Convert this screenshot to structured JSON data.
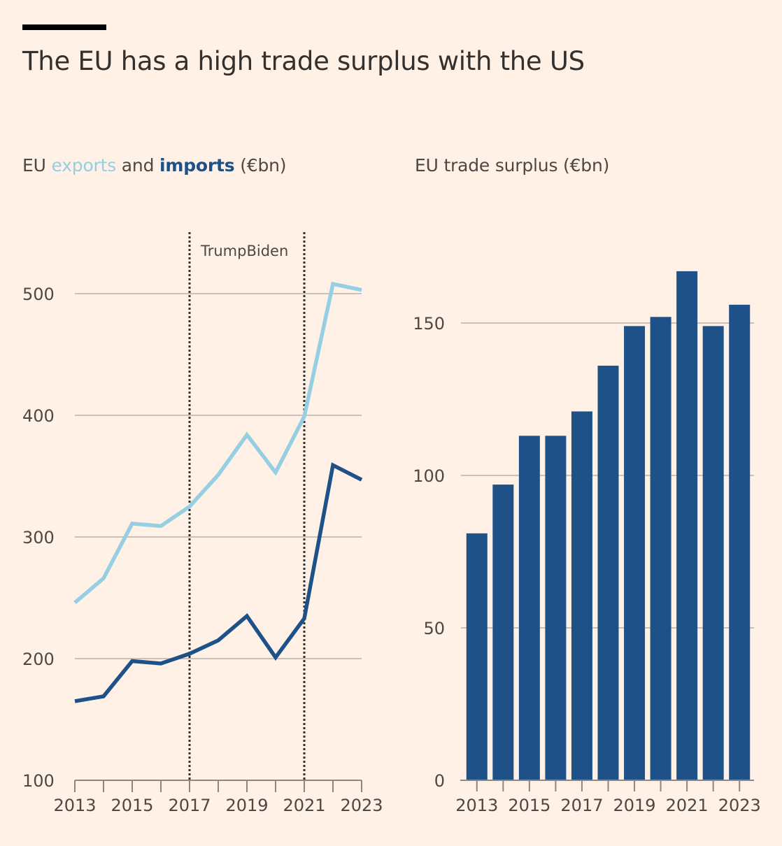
{
  "header": {
    "title": "The EU has a high trade surplus with the US"
  },
  "colors": {
    "background": "#FFF1E5",
    "exports": "#96CFE3",
    "imports": "#1F5189",
    "surplus": "#1F5189",
    "gridline": "#CCC1B7",
    "axis": "#8F8680",
    "annotation_line": "#33302E"
  },
  "left_panel": {
    "subtitle_prefix": "EU ",
    "subtitle_exports": "exports",
    "subtitle_and": " and ",
    "subtitle_imports": "imports",
    "subtitle_suffix": " (€bn)"
  },
  "right_panel": {
    "subtitle": "EU trade surplus (€bn)"
  },
  "chart_data": [
    {
      "type": "line",
      "title": "EU exports and imports (€bn)",
      "xlabel": "",
      "ylabel": "€bn",
      "x": [
        2013,
        2014,
        2015,
        2016,
        2017,
        2018,
        2019,
        2020,
        2021,
        2022,
        2023
      ],
      "xticks": [
        2013,
        2014,
        2015,
        2016,
        2017,
        2018,
        2019,
        2020,
        2021,
        2022,
        2023
      ],
      "xtick_labels": [
        "2013",
        "2015",
        "2017",
        "2019",
        "2021",
        "2023"
      ],
      "xlim": [
        2013,
        2023
      ],
      "ylim": [
        100,
        520
      ],
      "yticks": [
        100,
        200,
        300,
        400,
        500
      ],
      "ytick_labels": [
        "100",
        "200",
        "300",
        "400",
        "500"
      ],
      "grid": true,
      "series": [
        {
          "name": "exports",
          "color": "#96CFE3",
          "values": [
            246,
            266,
            311,
            309,
            325,
            351,
            384,
            353,
            399,
            508,
            503
          ]
        },
        {
          "name": "imports",
          "color": "#1F5189",
          "values": [
            165,
            169,
            198,
            196,
            204,
            215,
            235,
            201,
            233,
            359,
            347
          ]
        }
      ],
      "annotations": [
        {
          "type": "vline",
          "x": 2017,
          "style": "dotted"
        },
        {
          "type": "vline",
          "x": 2021,
          "style": "dotted"
        },
        {
          "type": "text",
          "text": "TrumpBiden",
          "x": 2017,
          "position": "top"
        }
      ]
    },
    {
      "type": "bar",
      "title": "EU trade surplus (€bn)",
      "xlabel": "",
      "ylabel": "€bn",
      "categories": [
        "2013",
        "2014",
        "2015",
        "2016",
        "2017",
        "2018",
        "2019",
        "2020",
        "2021",
        "2022",
        "2023"
      ],
      "xtick_labels": [
        "2013",
        "2015",
        "2017",
        "2019",
        "2021",
        "2023"
      ],
      "values": [
        81,
        97,
        113,
        113,
        121,
        136,
        149,
        152,
        167,
        149,
        156
      ],
      "color": "#1F5189",
      "ylim": [
        0,
        170
      ],
      "yticks": [
        0,
        50,
        100,
        150
      ],
      "ytick_labels": [
        "0",
        "50",
        "100",
        "150"
      ],
      "grid": true
    }
  ]
}
